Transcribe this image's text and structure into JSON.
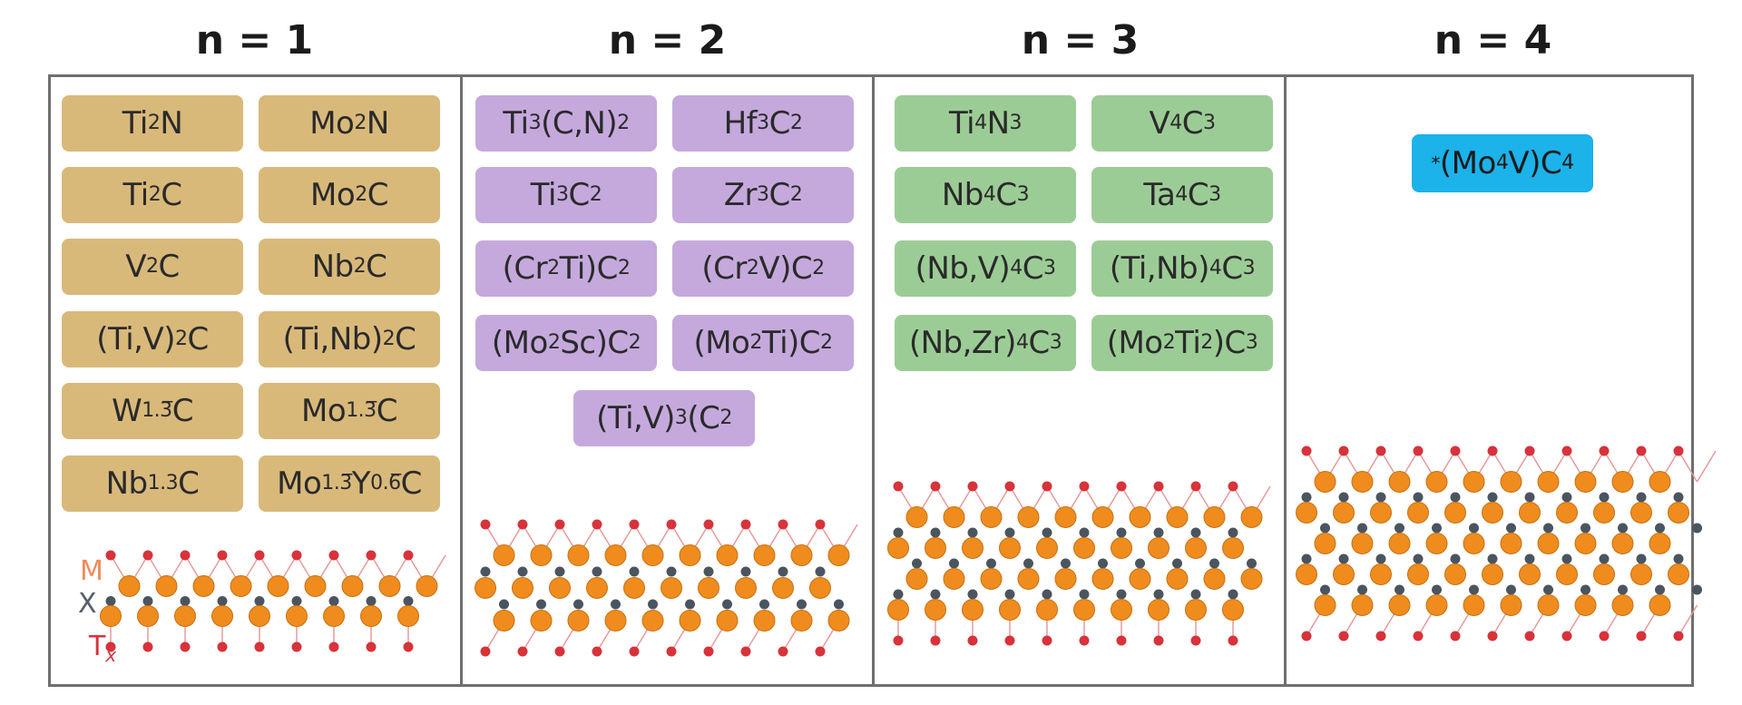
{
  "headers": [
    "n = 1",
    "n = 2",
    "n = 3",
    "n = 4"
  ],
  "panel1": {
    "chips": [
      [
        "Ti",
        {
          "sub": "2"
        },
        "N"
      ],
      [
        "Mo",
        {
          "sub": "2"
        },
        "N"
      ],
      [
        "Ti",
        {
          "sub": "2"
        },
        "C"
      ],
      [
        "Mo",
        {
          "sub": "2"
        },
        "C"
      ],
      [
        "V",
        {
          "sub": "2"
        },
        "C"
      ],
      [
        "Nb",
        {
          "sub": "2"
        },
        "C"
      ],
      [
        "(Ti,V)",
        {
          "sub": "2"
        },
        "C"
      ],
      [
        "(Ti,Nb)",
        {
          "sub": "2"
        },
        "C"
      ],
      [
        "W",
        {
          "sub": "1.3̅"
        },
        "C"
      ],
      [
        "Mo",
        {
          "sub": "1.3̅"
        },
        "C"
      ],
      [
        "Nb",
        {
          "sub": "1.3"
        },
        "C"
      ],
      [
        "Mo",
        {
          "sub": "1.3̅"
        },
        "Y",
        {
          "sub": "0.6̅"
        },
        "C"
      ]
    ],
    "labels": {
      "m": "M",
      "x": "X",
      "t": "T",
      "t_sub": "x"
    }
  },
  "panel2": {
    "chips": [
      [
        "Ti",
        {
          "sub": "3"
        },
        "(C,N)",
        {
          "sub": "2"
        }
      ],
      [
        "Hf",
        {
          "sub": "3"
        },
        "C",
        {
          "sub": "2"
        }
      ],
      [
        "Ti",
        {
          "sub": "3"
        },
        "C",
        {
          "sub": "2"
        }
      ],
      [
        "Zr",
        {
          "sub": "3"
        },
        "C",
        {
          "sub": "2"
        }
      ],
      [
        "(Cr",
        {
          "sub": "2"
        },
        "Ti)C",
        {
          "sub": "2"
        }
      ],
      [
        "(Cr",
        {
          "sub": "2"
        },
        "V)C",
        {
          "sub": "2"
        }
      ],
      [
        "(Mo",
        {
          "sub": "2"
        },
        "Sc)C",
        {
          "sub": "2"
        }
      ],
      [
        "(Mo",
        {
          "sub": "2"
        },
        "Ti)C",
        {
          "sub": "2"
        }
      ],
      [
        "(Ti,V)",
        {
          "sub": "3"
        },
        "(C",
        {
          "sub": "2"
        }
      ]
    ]
  },
  "panel3": {
    "chips": [
      [
        "Ti",
        {
          "sub": "4"
        },
        "N",
        {
          "sub": "3"
        }
      ],
      [
        "V",
        {
          "sub": "4"
        },
        "C",
        {
          "sub": "3"
        }
      ],
      [
        "Nb",
        {
          "sub": "4"
        },
        "C",
        {
          "sub": "3"
        }
      ],
      [
        "Ta",
        {
          "sub": "4"
        },
        "C",
        {
          "sub": "3"
        }
      ],
      [
        "(Nb,V)",
        {
          "sub": "4"
        },
        "C",
        {
          "sub": "3"
        }
      ],
      [
        "(Ti,Nb)",
        {
          "sub": "4"
        },
        "C",
        {
          "sub": "3"
        }
      ],
      [
        "(Nb,Zr)",
        {
          "sub": "4"
        },
        "C",
        {
          "sub": "3"
        }
      ],
      [
        "(Mo",
        {
          "sub": "2"
        },
        "Ti",
        {
          "sub": "2"
        },
        ")C",
        {
          "sub": "3"
        }
      ]
    ]
  },
  "panel4": {
    "chips": [
      [
        {
          "sup": "*"
        },
        "(Mo",
        {
          "sub": "4"
        },
        "V)C",
        {
          "sub": "4"
        }
      ]
    ]
  },
  "colors": {
    "n1_chip": "#d9b97a",
    "n2_chip": "#c5a9dd",
    "n3_chip": "#9ccc96",
    "n4_chip": "#1cb2ea",
    "metal_atom": "#f08c1e",
    "x_atom": "#4a5560",
    "t_atom": "#d8323a",
    "bond": "#e89a9a",
    "frame": "#6f6f6f"
  }
}
